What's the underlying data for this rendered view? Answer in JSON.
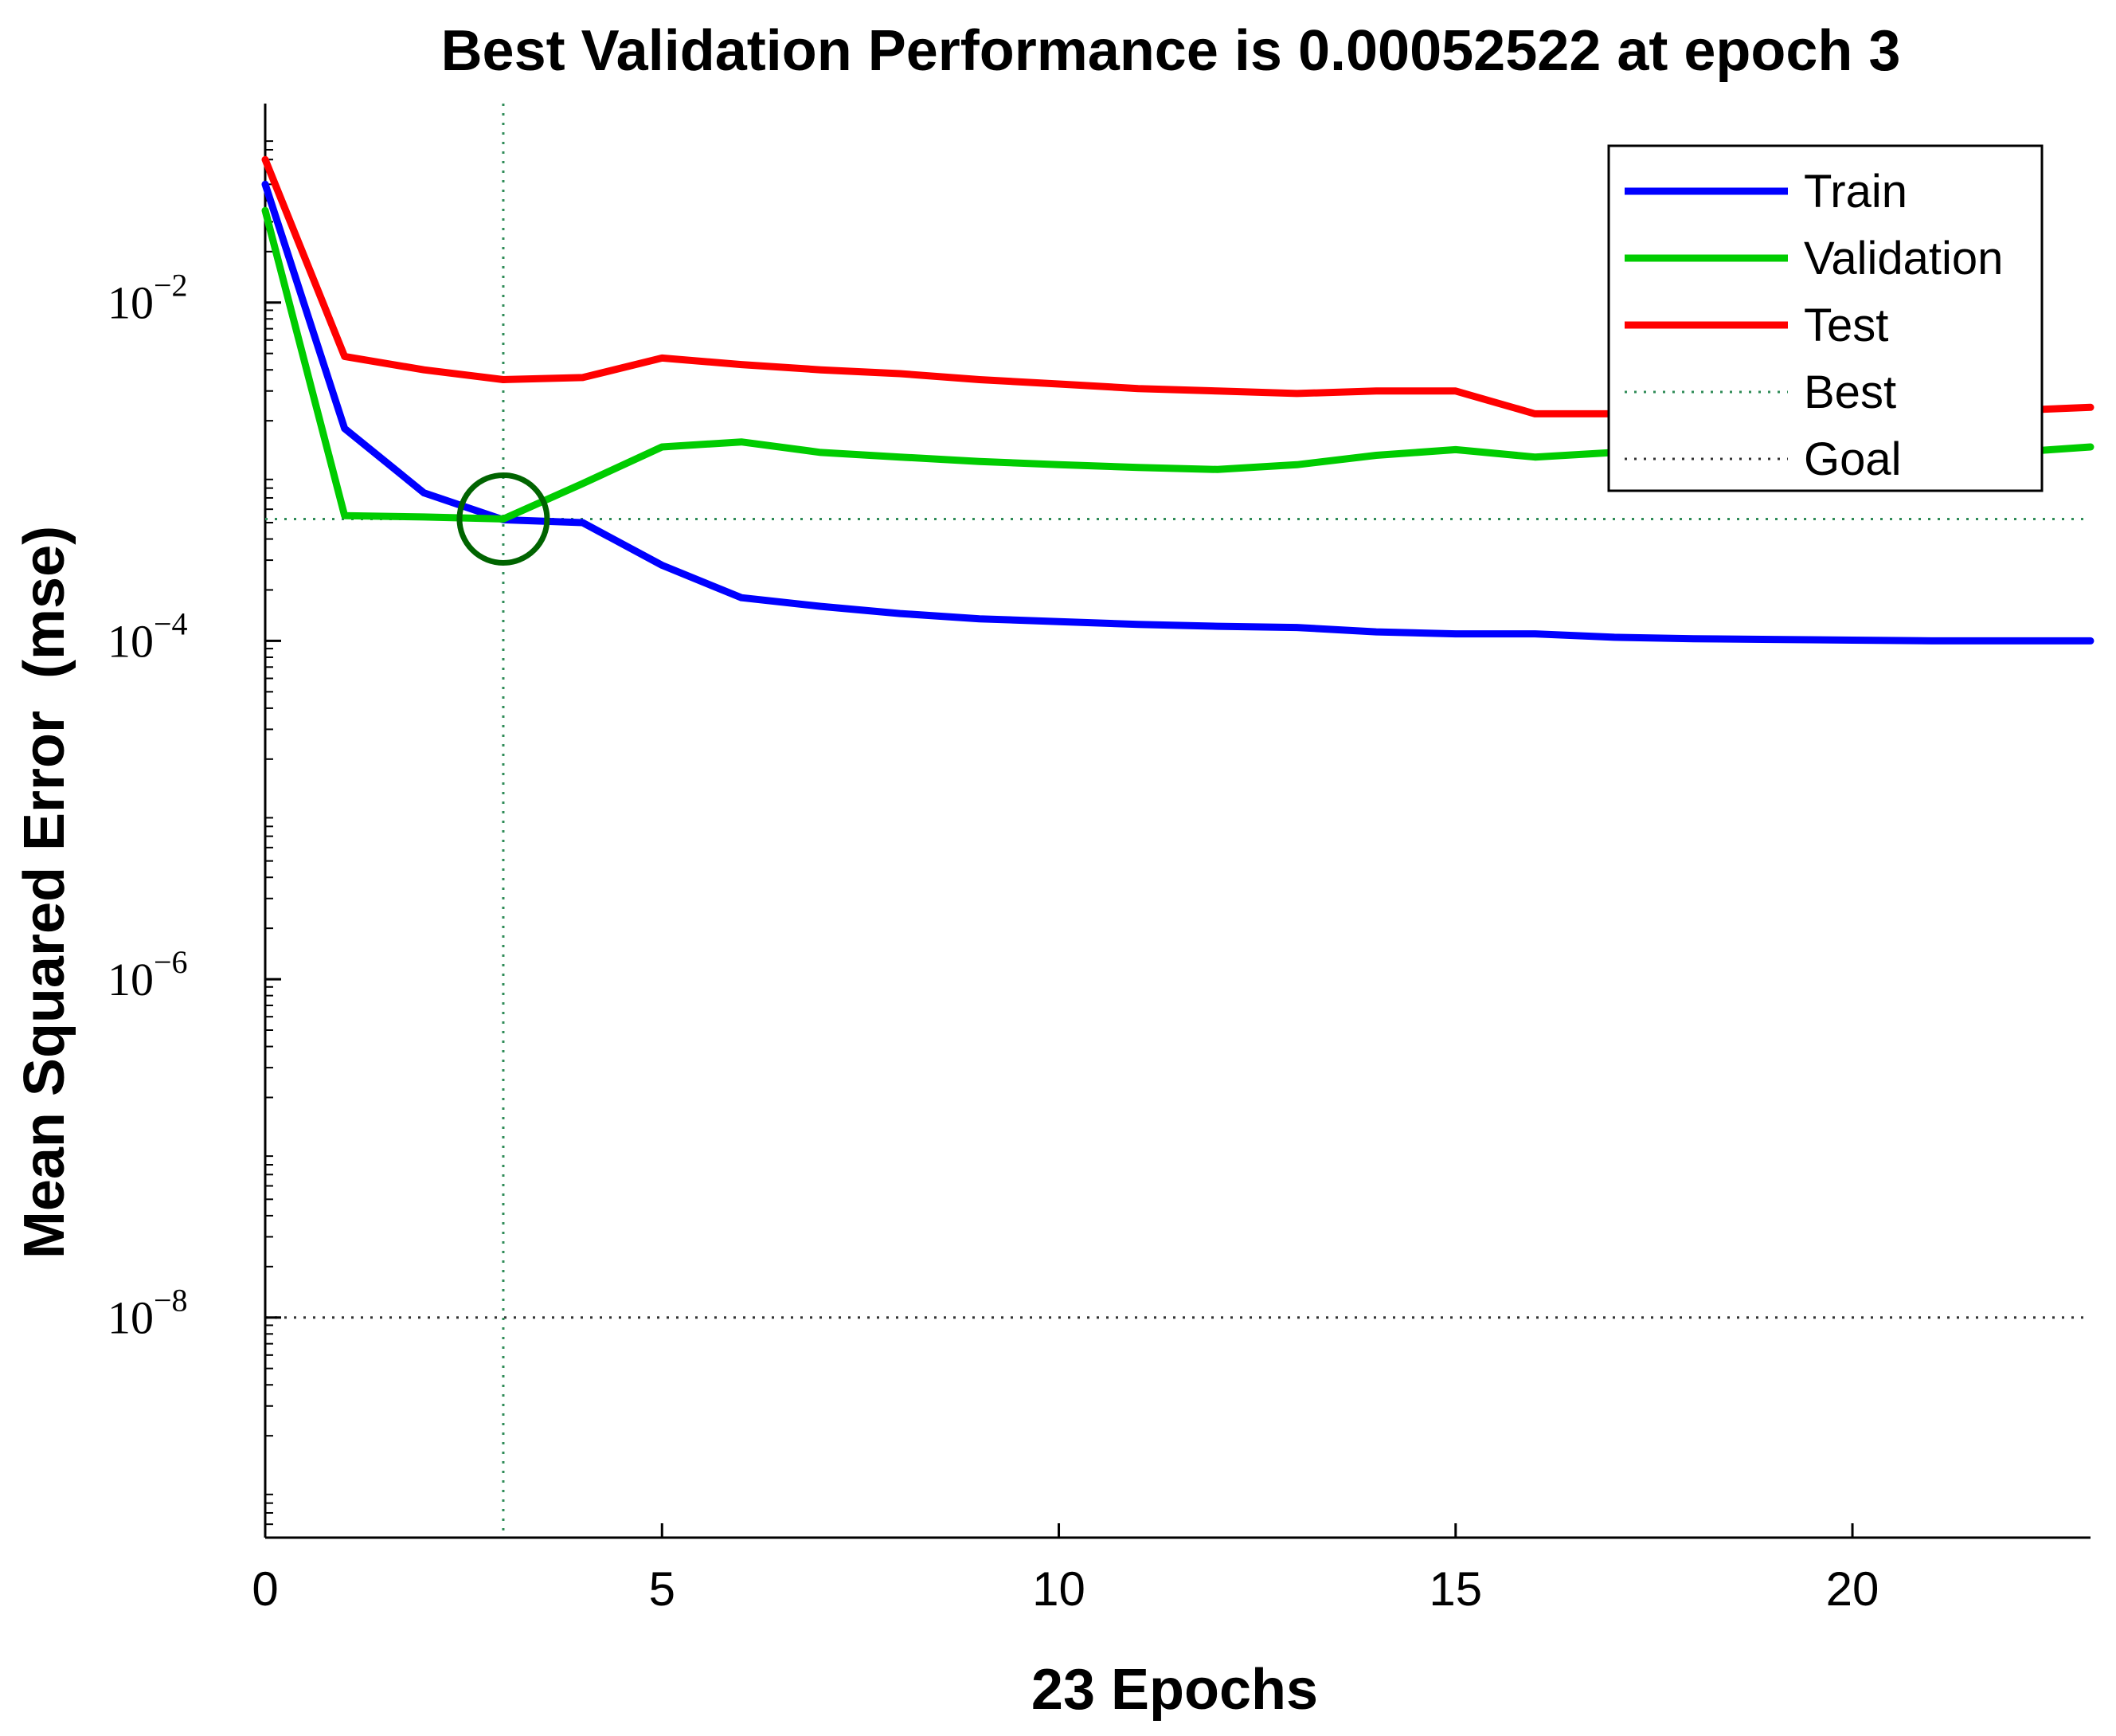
{
  "chart_data": {
    "type": "line",
    "title": "Best Validation Performance is 0.00052522 at epoch 3",
    "xlabel": "23 Epochs",
    "ylabel": "Mean Squared Error  (mse)",
    "xscale": "linear",
    "yscale": "log",
    "xlim": [
      0,
      23
    ],
    "ylim": [
      5e-10,
      0.15
    ],
    "xticks": [
      0,
      5,
      10,
      15,
      20
    ],
    "xtick_labels": [
      "0",
      "5",
      "10",
      "15",
      "20"
    ],
    "yticks": [
      1e-08,
      1e-06,
      0.0001,
      0.01
    ],
    "ytick_labels": [
      {
        "base": "10",
        "exp": "−8"
      },
      {
        "base": "10",
        "exp": "−6"
      },
      {
        "base": "10",
        "exp": "−4"
      },
      {
        "base": "10",
        "exp": "−2"
      }
    ],
    "x": [
      0,
      1,
      2,
      3,
      4,
      5,
      6,
      7,
      8,
      9,
      10,
      11,
      12,
      13,
      14,
      15,
      16,
      17,
      18,
      19,
      20,
      21,
      22,
      23
    ],
    "series": [
      {
        "name": "Train",
        "color": "#0000ff",
        "values": [
          0.05,
          0.0018,
          0.00075,
          0.00052,
          0.0005,
          0.00028,
          0.00018,
          0.00016,
          0.000145,
          0.000135,
          0.00013,
          0.000125,
          0.000122,
          0.00012,
          0.000113,
          0.00011,
          0.00011,
          0.000105,
          0.000103,
          0.000102,
          0.000101,
          0.0001,
          0.0001,
          0.0001
        ]
      },
      {
        "name": "Validation",
        "color": "#00cc00",
        "values": [
          0.035,
          0.00055,
          0.00054,
          0.00052522,
          0.00085,
          0.0014,
          0.0015,
          0.0013,
          0.00122,
          0.00115,
          0.0011,
          0.00106,
          0.00103,
          0.0011,
          0.00125,
          0.00135,
          0.00122,
          0.0013,
          0.0013,
          0.0013,
          0.0013,
          0.0013,
          0.0013,
          0.0014
        ]
      },
      {
        "name": "Test",
        "color": "#ff0000",
        "values": [
          0.07,
          0.0048,
          0.004,
          0.0035,
          0.0036,
          0.0047,
          0.0043,
          0.004,
          0.0038,
          0.0035,
          0.0033,
          0.0031,
          0.003,
          0.0029,
          0.003,
          0.003,
          0.0022,
          0.0022,
          0.0022,
          0.0022,
          0.0023,
          0.0023,
          0.0023,
          0.0024
        ]
      }
    ],
    "best": {
      "label": "Best",
      "epoch": 3,
      "value": 0.00052522,
      "color": "#2e8b57",
      "marker_color": "#006400"
    },
    "goal": {
      "label": "Goal",
      "value": 1e-08,
      "color": "#333333"
    },
    "legend": {
      "position": "top-right",
      "entries": [
        "Train",
        "Validation",
        "Test",
        "Best",
        "Goal"
      ]
    },
    "grid": false
  }
}
